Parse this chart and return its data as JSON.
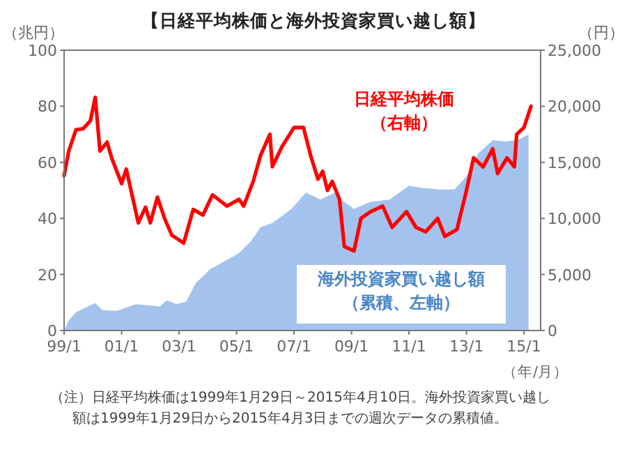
{
  "chart_data": {
    "type": "area",
    "title": "【日経平均株価と海外投資家買い越し額】",
    "ylabel": "（兆円）",
    "y2label": "（円）",
    "xlabel": "（年/月）",
    "xlim": [
      "1999-01",
      "2015-08"
    ],
    "xticks": [
      {
        "value": "1999-01",
        "label": "99/1"
      },
      {
        "value": "2001-01",
        "label": "01/1"
      },
      {
        "value": "2003-01",
        "label": "03/1"
      },
      {
        "value": "2005-01",
        "label": "05/1"
      },
      {
        "value": "2007-01",
        "label": "07/1"
      },
      {
        "value": "2009-01",
        "label": "09/1"
      },
      {
        "value": "2011-01",
        "label": "11/1"
      },
      {
        "value": "2013-01",
        "label": "13/1"
      },
      {
        "value": "2015-01",
        "label": "15/1"
      }
    ],
    "ylim": [
      0,
      100
    ],
    "yticks": [
      0,
      20,
      40,
      60,
      80,
      100
    ],
    "y2lim": [
      0,
      25000
    ],
    "y2ticks": [
      0,
      {
        "value": 5000,
        "label": "5,000"
      },
      {
        "value": 10000,
        "label": "10,000"
      },
      {
        "value": 15000,
        "label": "15,000"
      },
      {
        "value": 20000,
        "label": "20,000"
      },
      {
        "value": 25000,
        "label": "25,000"
      }
    ],
    "grid": false,
    "series": [
      {
        "name": "海外投資家買い越し額（累積、左軸）",
        "color": "#a4c2ee",
        "x": [
          "1999-01",
          "1999-03",
          "1999-06",
          "2000-02",
          "2000-05",
          "2000-11",
          "2001-07",
          "2002-05",
          "2002-08",
          "2002-12",
          "2003-04",
          "2003-08",
          "2004-02",
          "2004-09",
          "2005-02",
          "2005-07",
          "2005-11",
          "2006-04",
          "2006-12",
          "2007-06",
          "2007-12",
          "2008-06",
          "2008-10",
          "2009-02",
          "2009-09",
          "2010-05",
          "2011-01",
          "2011-07",
          "2012-02",
          "2012-08",
          "2013-01",
          "2013-06",
          "2013-12",
          "2014-06",
          "2014-11",
          "2015-03"
        ],
        "values": [
          0,
          3.6,
          6.5,
          9.8,
          7.3,
          7,
          9.4,
          8.6,
          10.8,
          9.4,
          10.3,
          16.9,
          21.9,
          25.2,
          27.6,
          31.8,
          36.8,
          38.4,
          43.4,
          49.2,
          46.7,
          49.2,
          45.9,
          43.4,
          45.9,
          46.7,
          51.7,
          50.8,
          50.3,
          50.3,
          55,
          63.2,
          67.9,
          67.4,
          68.2,
          69.9
        ]
      },
      {
        "name": "日経平均株価（右軸）",
        "type": "line",
        "axis": "y2",
        "color": "#ff0000",
        "x": [
          "1999-01",
          "1999-03",
          "1999-06",
          "1999-09",
          "1999-12",
          "2000-02",
          "2000-04",
          "2000-07",
          "2000-09",
          "2001-01",
          "2001-03",
          "2001-08",
          "2001-11",
          "2002-01",
          "2002-04",
          "2002-07",
          "2002-10",
          "2003-03",
          "2003-07",
          "2003-11",
          "2004-03",
          "2004-09",
          "2005-02",
          "2005-04",
          "2005-08",
          "2005-11",
          "2006-03",
          "2006-04",
          "2006-08",
          "2007-01",
          "2007-05",
          "2007-08",
          "2007-11",
          "2008-01",
          "2008-03",
          "2008-05",
          "2008-08",
          "2008-10",
          "2009-02",
          "2009-05",
          "2009-09",
          "2010-02",
          "2010-06",
          "2010-12",
          "2011-04",
          "2011-08",
          "2012-01",
          "2012-04",
          "2012-09",
          "2013-01",
          "2013-04",
          "2013-08",
          "2013-12",
          "2014-02",
          "2014-06",
          "2014-09",
          "2014-10",
          "2015-01",
          "2015-04"
        ],
        "values": [
          13800,
          16000,
          17900,
          18000,
          18700,
          20800,
          16000,
          16800,
          15300,
          13100,
          14400,
          9600,
          11000,
          9600,
          11900,
          10000,
          8500,
          7800,
          10800,
          10300,
          12100,
          11100,
          11700,
          11100,
          13300,
          15600,
          17500,
          14600,
          16400,
          18100,
          18100,
          15600,
          13500,
          14200,
          12500,
          13300,
          11700,
          7500,
          7100,
          10000,
          10600,
          11100,
          9200,
          10600,
          9200,
          8800,
          10000,
          8400,
          9000,
          12500,
          15400,
          14600,
          16200,
          14000,
          15400,
          14600,
          17500,
          18100,
          20000
        ]
      }
    ],
    "annotations": [
      "（注）日経平均株価は1999年1月29日～2015年4月10日。海外投資家買い越し額は1999年1月29日から2015年4月3日までの週次データの累積値。"
    ]
  }
}
